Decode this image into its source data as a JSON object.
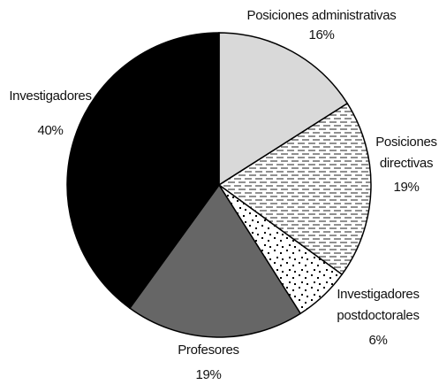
{
  "chart_data": {
    "type": "pie",
    "title": "",
    "slices": [
      {
        "label": "Posiciones administrativas",
        "label_lines": [
          "Posiciones administrativas"
        ],
        "value": 16,
        "value_label": "16%",
        "fill": "#d9d9d9",
        "pattern": "solid"
      },
      {
        "label": "Posiciones directivas",
        "label_lines": [
          "Posiciones",
          "directivas"
        ],
        "value": 19,
        "value_label": "19%",
        "fill": "#ffffff",
        "pattern": "dashes"
      },
      {
        "label": "Investigadores postdoctorales",
        "label_lines": [
          "Investigadores",
          "postdoctorales"
        ],
        "value": 6,
        "value_label": "6%",
        "fill": "#ffffff",
        "pattern": "dots"
      },
      {
        "label": "Profesores",
        "label_lines": [
          "Profesores"
        ],
        "value": 19,
        "value_label": "19%",
        "fill": "#666666",
        "pattern": "solid"
      },
      {
        "label": "Investigadores",
        "label_lines": [
          "Investigadores"
        ],
        "value": 40,
        "value_label": "40%",
        "fill": "#000000",
        "pattern": "solid"
      }
    ],
    "start_angle_deg": 0,
    "direction": "clockwise",
    "legend": "none",
    "labels_placement": "outside"
  }
}
